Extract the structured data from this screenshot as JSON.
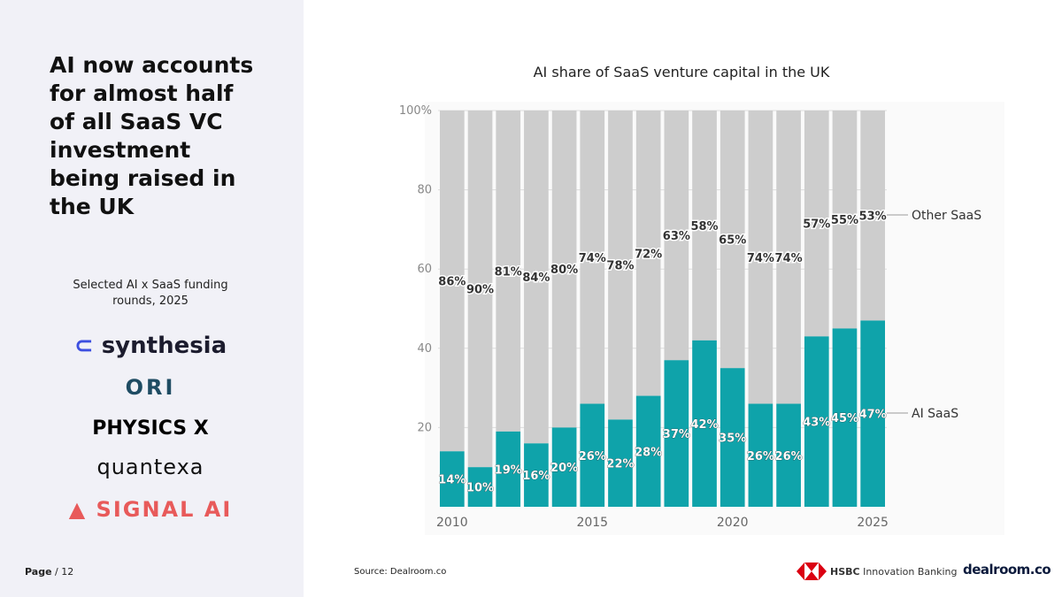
{
  "headline": "AI now accounts for almost half of all SaaS VC investment being raised in the UK",
  "selected_label": "Selected AI x SaaS funding rounds, 2025",
  "logos": [
    "synthesia",
    "ORI",
    "PHYSICS X",
    "quantexa",
    "SIGNAL AI"
  ],
  "footer": {
    "page_label": "Page",
    "page_rest": " / 12",
    "source": "Source:  Dealroom.co",
    "hsbc_bold": "HSBC",
    "hsbc_rest": " Innovation Banking",
    "dealroom": "dealroom.co"
  },
  "colors": {
    "ai": "#0fa3aa",
    "other": "#cdcdcd"
  },
  "chart_data": {
    "type": "bar",
    "stacked": true,
    "title": "AI share of SaaS venture capital in the UK",
    "categories": [
      2010,
      2011,
      2012,
      2013,
      2014,
      2015,
      2016,
      2017,
      2018,
      2019,
      2020,
      2021,
      2022,
      2023,
      2024,
      2025
    ],
    "x_tick_labels": [
      "2010",
      "2015",
      "2020",
      "2025"
    ],
    "y_tick_labels": [
      "20",
      "40",
      "60",
      "80",
      "100%"
    ],
    "ylim": [
      0,
      100
    ],
    "grid": true,
    "legend": "right",
    "series": [
      {
        "name": "AI SaaS",
        "values": [
          14,
          10,
          19,
          16,
          20,
          26,
          22,
          28,
          37,
          42,
          35,
          26,
          26,
          43,
          45,
          47
        ]
      },
      {
        "name": "Other SaaS",
        "values": [
          86,
          90,
          81,
          84,
          80,
          74,
          78,
          72,
          63,
          58,
          65,
          74,
          74,
          57,
          55,
          53
        ]
      }
    ]
  }
}
